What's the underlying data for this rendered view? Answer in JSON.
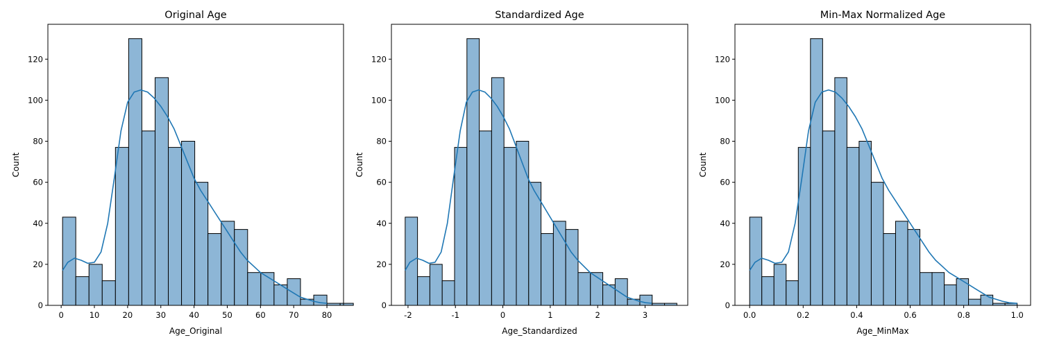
{
  "chart_data": [
    {
      "type": "bar",
      "title": "Original Age",
      "xlabel": "Age_Original",
      "ylabel": "Count",
      "xlim": [
        -4,
        85
      ],
      "ylim": [
        0,
        137
      ],
      "xticks": [
        0,
        10,
        20,
        30,
        40,
        50,
        60,
        70,
        80
      ],
      "xtick_labels": [
        "0",
        "10",
        "20",
        "30",
        "40",
        "50",
        "60",
        "70",
        "80"
      ],
      "yticks": [
        0,
        20,
        40,
        60,
        80,
        100,
        120
      ],
      "ytick_labels": [
        "0",
        "20",
        "40",
        "60",
        "80",
        "100",
        "120"
      ],
      "bin_start": 0.42,
      "bin_width": 3.979,
      "counts": [
        43,
        14,
        20,
        12,
        77,
        130,
        85,
        111,
        77,
        80,
        60,
        35,
        41,
        37,
        16,
        16,
        10,
        13,
        3,
        5,
        1,
        1
      ],
      "kde_x": [
        0.4,
        2,
        4,
        6,
        8,
        10,
        12,
        14,
        16,
        18,
        20,
        22,
        24,
        26,
        28,
        30,
        32,
        34,
        36,
        38,
        40,
        42,
        44,
        46,
        48,
        50,
        52,
        54,
        56,
        58,
        60,
        62,
        64,
        66,
        68,
        70,
        72,
        74,
        76,
        78,
        80
      ],
      "kde_y": [
        17,
        21,
        23,
        22,
        20.5,
        21,
        26,
        40,
        62,
        85,
        99,
        104,
        105,
        104,
        101,
        97,
        92,
        86,
        78,
        70,
        62,
        56,
        51,
        46,
        41,
        36,
        31,
        26,
        22,
        19,
        16,
        14,
        12,
        10,
        8,
        6,
        4,
        3,
        2,
        1.3,
        1
      ],
      "grid": false,
      "legend": "none"
    },
    {
      "type": "bar",
      "title": "Standardized Age",
      "xlabel": "Age_Standardized",
      "ylabel": "Count",
      "xlim": [
        -2.35,
        3.9
      ],
      "ylim": [
        0,
        137
      ],
      "xticks": [
        -2,
        -1,
        0,
        1,
        2,
        3
      ],
      "xtick_labels": [
        "-2",
        "-1",
        "0",
        "1",
        "2",
        "3"
      ],
      "yticks": [
        0,
        20,
        40,
        60,
        80,
        100,
        120
      ],
      "ytick_labels": [
        "0",
        "20",
        "40",
        "60",
        "80",
        "100",
        "120"
      ],
      "bin_start": -2.06,
      "bin_width": 0.2605,
      "counts": [
        43,
        14,
        20,
        12,
        77,
        130,
        85,
        111,
        77,
        80,
        60,
        35,
        41,
        37,
        16,
        16,
        10,
        13,
        3,
        5,
        1,
        1
      ],
      "kde_x": [
        -2.06,
        -1.96,
        -1.82,
        -1.69,
        -1.56,
        -1.43,
        -1.3,
        -1.17,
        -1.04,
        -0.9,
        -0.77,
        -0.64,
        -0.51,
        -0.38,
        -0.25,
        -0.12,
        0.01,
        0.14,
        0.27,
        0.4,
        0.53,
        0.66,
        0.79,
        0.92,
        1.05,
        1.18,
        1.31,
        1.44,
        1.58,
        1.71,
        1.84,
        1.97,
        2.1,
        2.23,
        2.36,
        2.49,
        2.62,
        2.75,
        2.88,
        3.01,
        3.14
      ],
      "kde_y": [
        17,
        21,
        23,
        22,
        20.5,
        21,
        26,
        40,
        62,
        85,
        99,
        104,
        105,
        104,
        101,
        97,
        92,
        86,
        78,
        70,
        62,
        56,
        51,
        46,
        41,
        36,
        31,
        26,
        22,
        19,
        16,
        14,
        12,
        10,
        8,
        6,
        4,
        3,
        2,
        1.3,
        1
      ],
      "grid": false,
      "legend": "none"
    },
    {
      "type": "bar",
      "title": "Min-Max Normalized Age",
      "xlabel": "Age_MinMax",
      "ylabel": "Count",
      "xlim": [
        -0.055,
        1.05
      ],
      "ylim": [
        0,
        137
      ],
      "xticks": [
        0.0,
        0.2,
        0.4,
        0.6,
        0.8,
        1.0
      ],
      "xtick_labels": [
        "0.0",
        "0.2",
        "0.4",
        "0.6",
        "0.8",
        "1.0"
      ],
      "yticks": [
        0,
        20,
        40,
        60,
        80,
        100,
        120
      ],
      "ytick_labels": [
        "0",
        "20",
        "40",
        "60",
        "80",
        "100",
        "120"
      ],
      "bin_start": 0.0,
      "bin_width": 0.04545,
      "counts": [
        43,
        14,
        20,
        12,
        77,
        130,
        85,
        111,
        77,
        80,
        60,
        35,
        41,
        37,
        16,
        16,
        10,
        13,
        3,
        5,
        1,
        1
      ],
      "kde_x": [
        0,
        0.02,
        0.045,
        0.07,
        0.095,
        0.12,
        0.145,
        0.17,
        0.195,
        0.22,
        0.245,
        0.27,
        0.295,
        0.32,
        0.345,
        0.37,
        0.395,
        0.42,
        0.445,
        0.47,
        0.495,
        0.52,
        0.545,
        0.57,
        0.595,
        0.62,
        0.645,
        0.67,
        0.695,
        0.72,
        0.745,
        0.77,
        0.795,
        0.82,
        0.845,
        0.87,
        0.895,
        0.92,
        0.945,
        0.97,
        1.0
      ],
      "kde_y": [
        17,
        21,
        23,
        22,
        20.5,
        21,
        26,
        40,
        62,
        85,
        99,
        104,
        105,
        104,
        101,
        97,
        92,
        86,
        78,
        70,
        62,
        56,
        51,
        46,
        41,
        36,
        31,
        26,
        22,
        19,
        16,
        14,
        12,
        10,
        8,
        6,
        4,
        3,
        2,
        1.3,
        1
      ],
      "grid": false,
      "legend": "none"
    }
  ],
  "colors": {
    "bar_fill": "#8db6d6",
    "bar_edge": "#000000",
    "kde_line": "#1f77b4",
    "axes": "#000000",
    "background": "#ffffff"
  }
}
